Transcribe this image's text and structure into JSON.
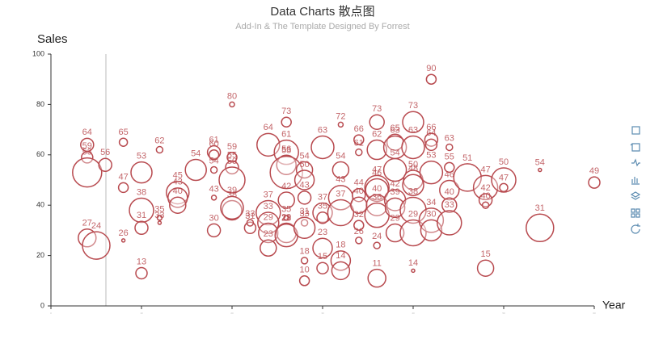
{
  "chart_data": {
    "type": "bubble",
    "title": "Data Charts 散点图",
    "subtitle": "Add-In & The Template Designed By Forrest",
    "y_label": "Sales",
    "x_label": "Year",
    "color": "#b84a4f",
    "xlim": [
      0,
      60
    ],
    "xticks": [
      0,
      10,
      20,
      30,
      40,
      50,
      60
    ],
    "ylim": [
      0,
      100
    ],
    "yticks": [
      0,
      20,
      40,
      60,
      80,
      100
    ],
    "x": [
      4,
      4,
      4,
      4,
      6,
      5,
      8,
      8,
      8,
      10,
      10,
      10,
      10,
      12,
      12,
      12,
      14,
      14,
      14,
      16,
      18,
      18,
      18,
      18,
      18,
      20,
      20,
      20,
      20,
      20,
      20,
      22,
      22,
      24,
      24,
      24,
      24,
      24,
      26,
      26,
      26,
      26,
      26,
      26,
      26,
      26,
      28,
      28,
      28,
      28,
      28,
      28,
      28,
      30,
      30,
      30,
      30,
      30,
      32,
      32,
      32,
      32,
      32,
      32,
      34,
      34,
      34,
      34,
      34,
      34,
      36,
      36,
      36,
      36,
      36,
      36,
      36,
      36,
      38,
      38,
      38,
      38,
      38,
      38,
      40,
      40,
      40,
      40,
      40,
      40,
      40,
      42,
      42,
      42,
      42,
      42,
      42,
      44,
      44,
      44,
      44,
      44,
      46,
      48,
      48,
      48,
      48,
      50,
      50,
      54,
      54,
      60
    ],
    "values": [
      64,
      59,
      53,
      27,
      56,
      24,
      65,
      47,
      26,
      53,
      38,
      31,
      13,
      62,
      35,
      33,
      45,
      43,
      40,
      54,
      61,
      60,
      54,
      43,
      30,
      80,
      59,
      55,
      50,
      38,
      39,
      31,
      33,
      64,
      37,
      33,
      29,
      23,
      73,
      61,
      56,
      53,
      42,
      35,
      29,
      28,
      54,
      50,
      43,
      33,
      31,
      18,
      10,
      63,
      37,
      35,
      23,
      15,
      72,
      54,
      43,
      37,
      18,
      14,
      66,
      61,
      44,
      40,
      32,
      26,
      73,
      62,
      47,
      46,
      40,
      36,
      24,
      11,
      65,
      63,
      54,
      42,
      39,
      29,
      73,
      63,
      50,
      48,
      38,
      29,
      14,
      90,
      66,
      64,
      53,
      34,
      30,
      63,
      55,
      46,
      40,
      33,
      51,
      47,
      42,
      40,
      15,
      50,
      47,
      54,
      31,
      49
    ],
    "sizes": [
      8,
      7,
      18,
      11,
      8,
      17,
      5,
      6,
      2,
      13,
      15,
      8,
      7,
      4,
      3,
      2,
      14,
      12,
      10,
      13,
      8,
      6,
      4,
      3,
      8,
      3,
      6,
      8,
      16,
      12,
      14,
      7,
      4,
      14,
      15,
      13,
      12,
      10,
      6,
      15,
      12,
      20,
      10,
      3,
      12,
      14,
      10,
      12,
      8,
      4,
      13,
      4,
      6,
      14,
      12,
      7,
      12,
      7,
      3,
      10,
      15,
      16,
      12,
      11,
      6,
      4,
      8,
      10,
      6,
      4,
      9,
      12,
      15,
      14,
      13,
      15,
      4,
      11,
      10,
      14,
      14,
      13,
      12,
      11,
      13,
      14,
      12,
      13,
      16,
      16,
      2,
      6,
      8,
      7,
      14,
      15,
      13,
      4,
      6,
      12,
      9,
      15,
      17,
      15,
      8,
      4,
      10,
      15,
      5,
      2,
      17,
      7
    ]
  }
}
